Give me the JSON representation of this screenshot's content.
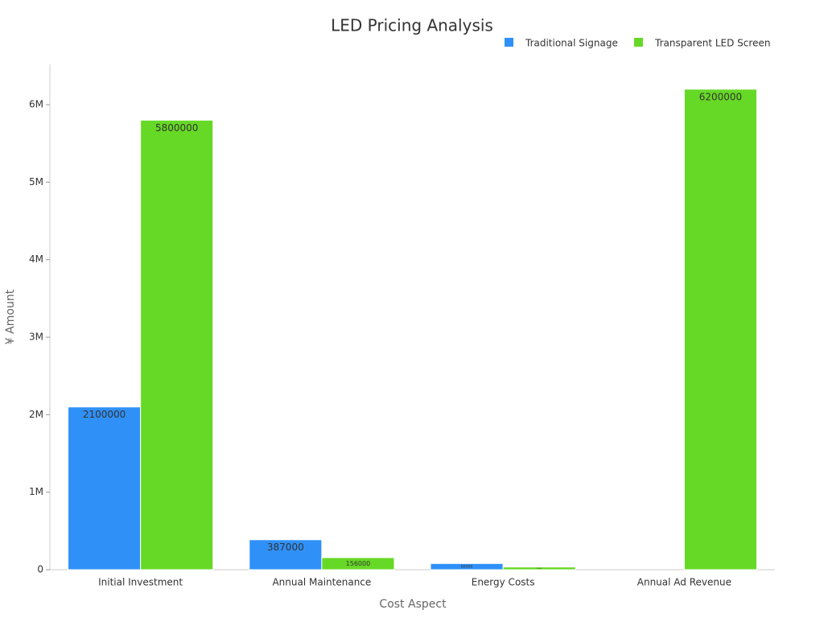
{
  "chart_data": {
    "type": "bar",
    "title": "LED Pricing Analysis",
    "x_label": "Cost Aspect",
    "y_label": "¥ Amount",
    "categories": [
      "Initial Investment",
      "Annual Maintenance",
      "Energy Costs",
      "Annual Ad Revenue"
    ],
    "series": [
      {
        "name": "Traditional Signage",
        "color": "#2f91f7",
        "values": [
          2100000,
          387000,
          80000,
          null
        ]
      },
      {
        "name": "Transparent LED Screen",
        "color": "#66d926",
        "values": [
          5800000,
          156000,
          35000,
          6200000
        ]
      }
    ],
    "ylim": [
      0,
      6520000
    ],
    "yticks": [
      0,
      {
        "value": 1000000,
        "label": "1M"
      },
      {
        "value": 2000000,
        "label": "2M"
      },
      {
        "value": 3000000,
        "label": "3M"
      },
      {
        "value": 4000000,
        "label": "4M"
      },
      {
        "value": 5000000,
        "label": "5M"
      },
      {
        "value": 6000000,
        "label": "6M"
      }
    ],
    "legend": "top-right"
  }
}
